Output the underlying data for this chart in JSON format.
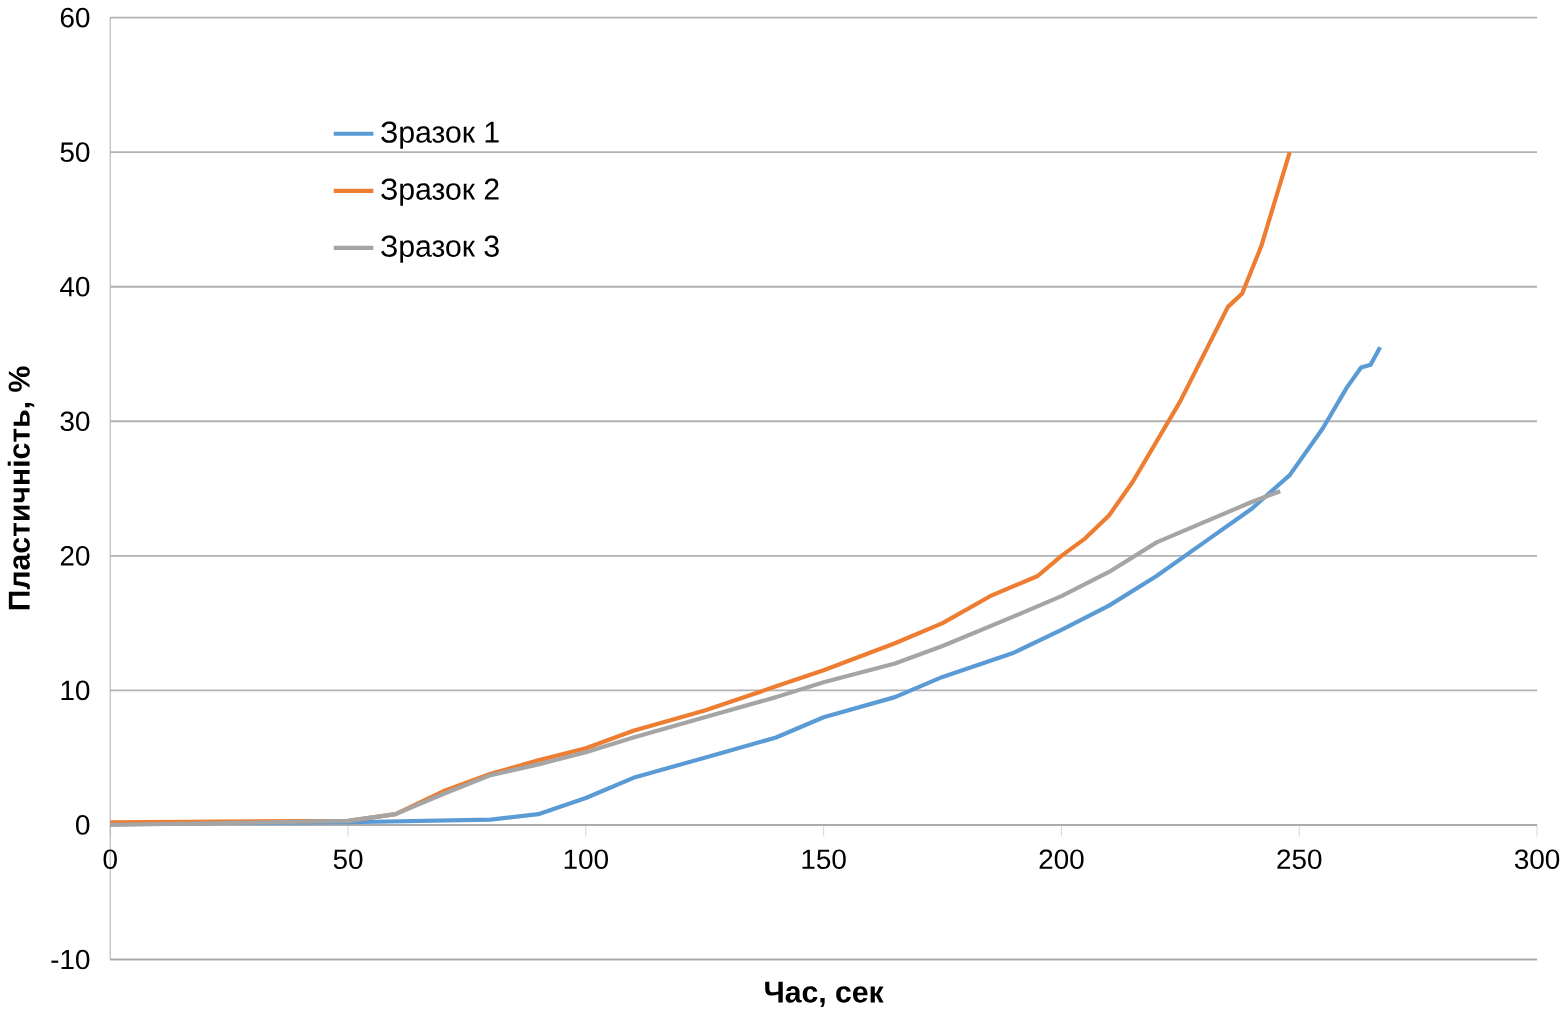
{
  "chart_data": {
    "type": "line",
    "xlabel": "Час, сек",
    "ylabel": "Пластичність, %",
    "xlim": [
      0,
      300
    ],
    "ylim": [
      -10,
      60
    ],
    "xticks": [
      0,
      50,
      100,
      150,
      200,
      250,
      300
    ],
    "yticks": [
      -10,
      0,
      10,
      20,
      30,
      40,
      50,
      60
    ],
    "grid": "y",
    "legend": "top left",
    "marker": "none",
    "line_style": "solid",
    "series": [
      {
        "name": "Зразок 1",
        "color": "#5b9bd5",
        "x": [
          0,
          50,
          80,
          90,
          100,
          110,
          125,
          140,
          150,
          165,
          175,
          190,
          200,
          210,
          220,
          230,
          240,
          248,
          255,
          260,
          263,
          265,
          267
        ],
        "values": [
          0.1,
          0.2,
          0.4,
          0.8,
          2,
          3.5,
          5,
          6.5,
          8,
          9.5,
          11,
          12.8,
          14.5,
          16.3,
          18.5,
          21,
          23.5,
          26,
          29.5,
          32.5,
          34,
          34.2,
          35.5
        ]
      },
      {
        "name": "Зразок 2",
        "color": "#ed7d31",
        "x": [
          0,
          50,
          60,
          70,
          80,
          90,
          100,
          110,
          125,
          140,
          150,
          165,
          175,
          185,
          195,
          200,
          205,
          210,
          215,
          220,
          225,
          230,
          235,
          238,
          242,
          245,
          248
        ],
        "values": [
          0.2,
          0.3,
          0.8,
          2.5,
          3.8,
          4.8,
          5.7,
          7,
          8.5,
          10.3,
          11.5,
          13.5,
          15,
          17,
          18.5,
          20,
          21.3,
          23,
          25.5,
          28.5,
          31.5,
          35,
          38.5,
          39.5,
          43,
          46.5,
          50
        ]
      },
      {
        "name": "Зразок 3",
        "color": "#a5a5a5",
        "x": [
          0,
          50,
          60,
          70,
          80,
          90,
          100,
          110,
          125,
          140,
          150,
          165,
          175,
          190,
          200,
          210,
          220,
          230,
          240,
          246
        ],
        "values": [
          0,
          0.3,
          0.8,
          2.3,
          3.7,
          4.5,
          5.4,
          6.5,
          8,
          9.5,
          10.6,
          12,
          13.3,
          15.5,
          17,
          18.8,
          21,
          22.5,
          24,
          24.8
        ]
      }
    ]
  }
}
